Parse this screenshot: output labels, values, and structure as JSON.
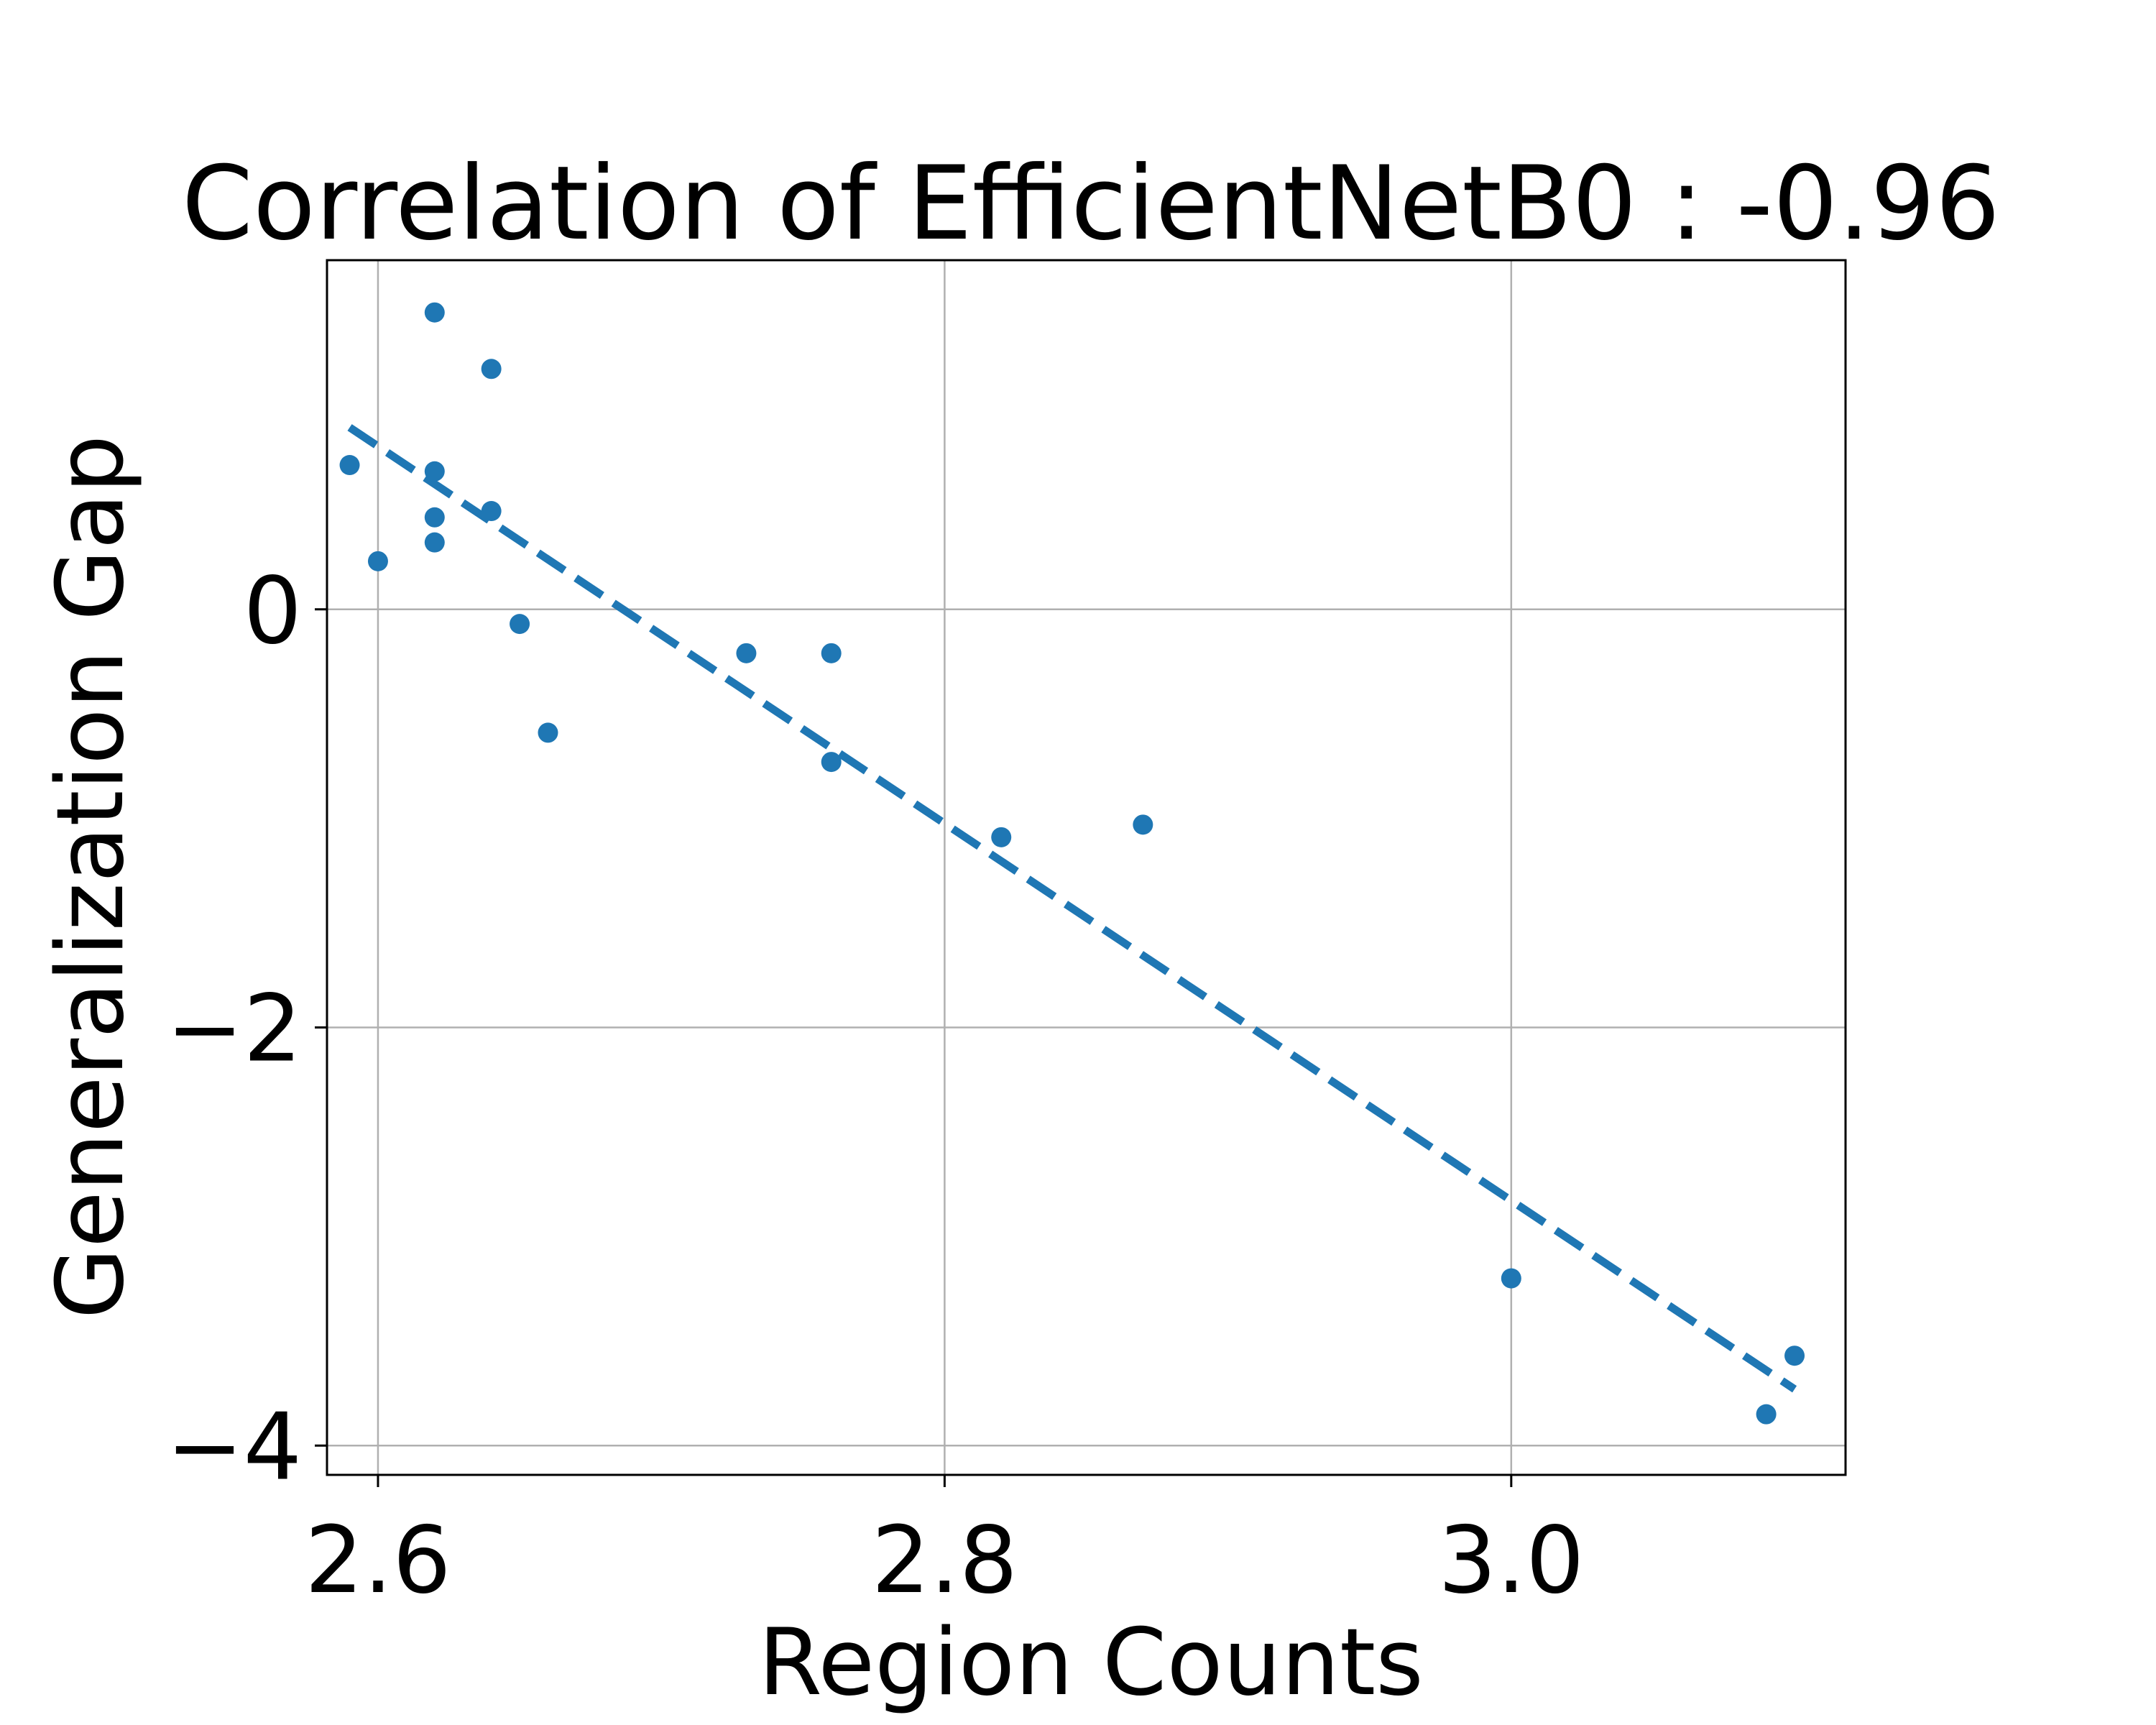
{
  "chart_data": {
    "type": "scatter",
    "title": "Correlation of EfficientNetB0 : -0.96",
    "xlabel": "Region Counts",
    "ylabel": "Generalization Gap",
    "xlim": [
      2.582,
      3.118
    ],
    "ylim": [
      -4.14,
      1.67
    ],
    "x_ticks": [
      2.6,
      2.8,
      3.0
    ],
    "x_tick_labels": [
      "2.6",
      "2.8",
      "3.0"
    ],
    "y_ticks": [
      0,
      -2,
      -4
    ],
    "y_tick_labels": [
      "0",
      "−2",
      "−4"
    ],
    "grid": true,
    "color": "#1f77b4",
    "series": [
      {
        "points": [
          [
            2.59,
            0.69
          ],
          [
            2.6,
            0.23
          ],
          [
            2.62,
            1.42
          ],
          [
            2.62,
            0.66
          ],
          [
            2.62,
            0.44
          ],
          [
            2.62,
            0.32
          ],
          [
            2.64,
            1.15
          ],
          [
            2.64,
            0.47
          ],
          [
            2.65,
            -0.07
          ],
          [
            2.66,
            -0.59
          ],
          [
            2.73,
            -0.21
          ],
          [
            2.76,
            -0.21
          ],
          [
            2.76,
            -0.73
          ],
          [
            2.82,
            -1.09
          ],
          [
            2.87,
            -1.03
          ],
          [
            3.0,
            -3.2
          ],
          [
            3.09,
            -3.85
          ],
          [
            3.1,
            -3.57
          ]
        ]
      }
    ],
    "trendline": {
      "style": "dashed",
      "start": [
        2.59,
        0.87
      ],
      "end": [
        3.1,
        -3.73
      ]
    }
  }
}
